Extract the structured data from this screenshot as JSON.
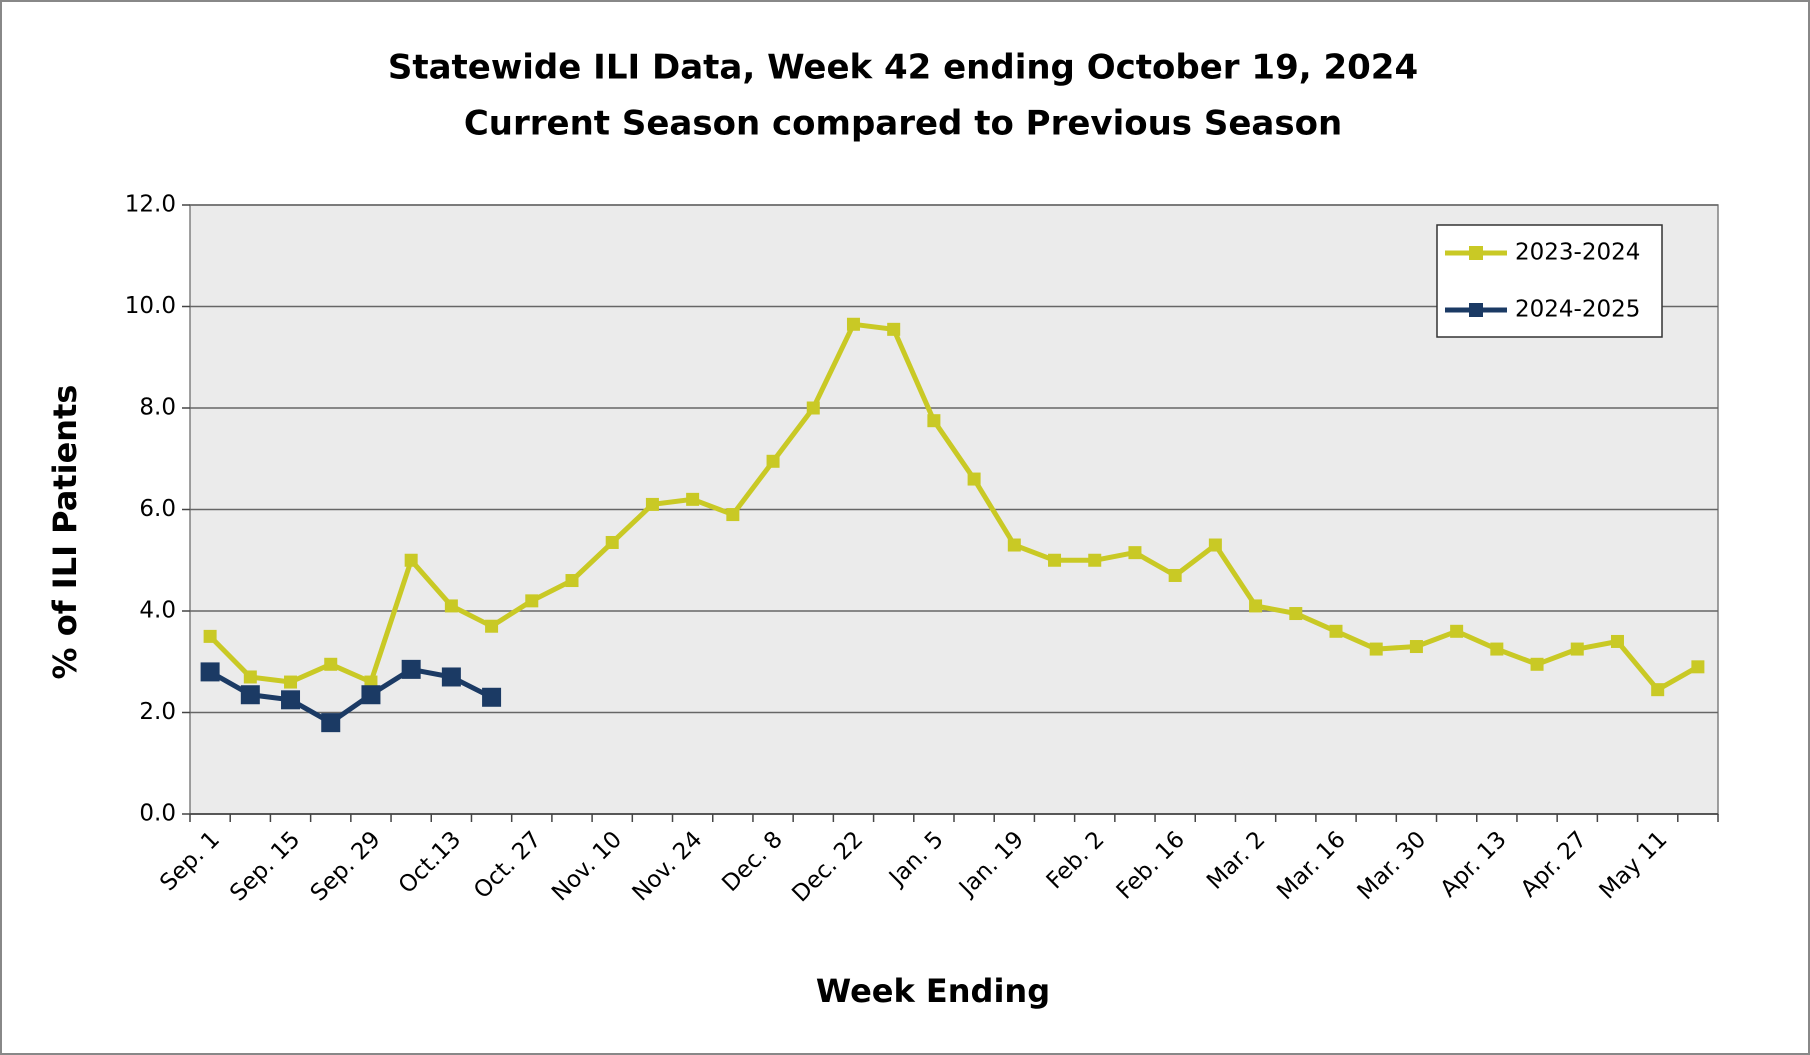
{
  "chart_data": {
    "type": "line",
    "title": "Statewide ILI Data, Week 42 ending October 19, 2024",
    "subtitle": "Current Season compared to Previous Season",
    "x_label": "Week Ending",
    "y_label": "% of ILI Patients",
    "categories": [
      "Sep. 1",
      null,
      "Sep. 15",
      null,
      "Sep. 29",
      null,
      "Oct.13",
      null,
      "Oct. 27",
      null,
      "Nov. 10",
      null,
      "Nov. 24",
      null,
      "Dec. 8",
      null,
      "Dec. 22",
      null,
      "Jan. 5",
      null,
      "Jan. 19",
      null,
      "Feb. 2",
      null,
      "Feb. 16",
      null,
      "Mar. 2",
      null,
      "Mar. 16",
      null,
      "Mar. 30",
      null,
      "Apr. 13",
      null,
      "Apr. 27",
      null,
      "May 11",
      null
    ],
    "series": [
      {
        "name": "2023-2024",
        "color": "#c9c925",
        "values": [
          3.5,
          2.7,
          2.6,
          2.95,
          2.6,
          5.0,
          4.1,
          3.7,
          4.2,
          4.6,
          5.35,
          6.1,
          6.2,
          5.9,
          6.95,
          8.0,
          9.65,
          9.55,
          7.75,
          6.6,
          5.3,
          5.0,
          5.0,
          5.15,
          4.7,
          5.3,
          4.1,
          3.95,
          3.6,
          3.25,
          3.3,
          3.6,
          3.25,
          2.95,
          3.25,
          3.4,
          2.45,
          2.9
        ]
      },
      {
        "name": "2024-2025",
        "color": "#1b3a64",
        "values": [
          2.8,
          2.35,
          2.25,
          1.8,
          2.35,
          2.85,
          2.7,
          2.3,
          null,
          null,
          null,
          null,
          null,
          null,
          null,
          null,
          null,
          null,
          null,
          null,
          null,
          null,
          null,
          null,
          null,
          null,
          null,
          null,
          null,
          null,
          null,
          null,
          null,
          null,
          null,
          null,
          null,
          null
        ]
      }
    ],
    "ylim": [
      0,
      12
    ],
    "yticks": [
      {
        "value": 0,
        "label": "0.0"
      },
      {
        "value": 2,
        "label": "2.0"
      },
      {
        "value": 4,
        "label": "4.0"
      },
      {
        "value": 6,
        "label": "6.0"
      },
      {
        "value": 8,
        "label": "8.0"
      },
      {
        "value": 10,
        "label": "10.0"
      },
      {
        "value": 12,
        "label": "12.0"
      }
    ],
    "grid": true,
    "legend": "upper right"
  }
}
